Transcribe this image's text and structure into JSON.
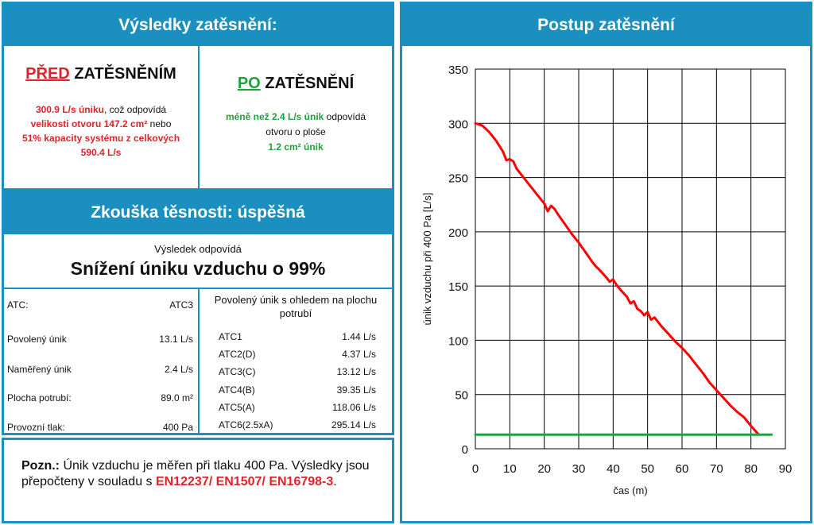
{
  "results": {
    "title": "Výsledky zatěsnění:",
    "before": {
      "heading_key": "PŘED",
      "heading_rest": "ZATĚSNĚNÍM",
      "line1_red": "300.9 L/s úniku",
      "line1_rest": ", což odpovídá",
      "line2_red": "velikosti otvoru 147.2 cm²",
      "line2_rest": " nebo",
      "line3_red": "51% kapacity systému z celkových",
      "line4_red": "590.4 L/s"
    },
    "after": {
      "heading_key": "PO",
      "heading_rest": "ZATĚSNĚNÍ",
      "line1_green": "méně než 2.4 L/s únik",
      "line1_rest": " odpovídá",
      "line2": "otvoru o ploše",
      "line3_green": "1.2 cm² únik"
    }
  },
  "test": {
    "title": "Zkouška těsnosti: úspěšná",
    "result_intro": "Výsledek odpovídá",
    "result_main": "Snížení úniku vzduchu o 99%",
    "left_rows": [
      {
        "label": "ATC:",
        "value": "ATC3"
      },
      {
        "label": "Povolený únik",
        "value": "13.1 L/s"
      },
      {
        "label": "Naměřený únik",
        "value": "2.4 L/s"
      },
      {
        "label": "Plocha potrubí:",
        "value": "89.0 m²"
      },
      {
        "label": "Provozní tlak:",
        "value": "400 Pa"
      }
    ],
    "right_title": "Povolený únik s ohledem na plochu potrubí",
    "right_rows": [
      {
        "label": "ATC1",
        "value": "1.44 L/s"
      },
      {
        "label": "ATC2(D)",
        "value": "4.37 L/s"
      },
      {
        "label": "ATC3(C)",
        "value": "13.12 L/s"
      },
      {
        "label": "ATC4(B)",
        "value": "39.35 L/s"
      },
      {
        "label": "ATC5(A)",
        "value": "118.06 L/s"
      },
      {
        "label": "ATC6(2.5xA)",
        "value": "295.14 L/s"
      }
    ]
  },
  "note": {
    "label": "Pozn.:",
    "text": " Únik vzduchu je měřen při tlaku 400 Pa. Výsledky jsou přepočteny v souladu s ",
    "standards": "EN12237/ EN1507/ EN16798-3",
    "end": "."
  },
  "colors": {
    "accent": "#1b8fc0",
    "red": "#e0222b",
    "green": "#1ea23a"
  },
  "chart_data": {
    "type": "line",
    "title": "Postup zatěsnění",
    "xlabel": "čas (m)",
    "ylabel": "únik vzduchu při 400 Pa [L/s]",
    "xlim": [
      0,
      90
    ],
    "ylim": [
      0,
      350
    ],
    "xticks": [
      0,
      10,
      20,
      30,
      40,
      50,
      60,
      70,
      80,
      90
    ],
    "yticks": [
      0,
      50,
      100,
      150,
      200,
      250,
      300,
      350
    ],
    "grid": true,
    "series": [
      {
        "color": "#ff0000",
        "x": [
          0,
          2,
          4,
          6,
          8,
          9,
          10,
          11,
          12,
          14,
          16,
          18,
          20,
          21,
          22,
          23,
          24,
          26,
          28,
          30,
          32,
          34,
          35,
          36,
          38,
          39,
          40,
          41,
          42,
          44,
          45,
          46,
          47,
          48,
          49,
          50,
          51,
          52,
          54,
          56,
          58,
          60,
          62,
          64,
          66,
          68,
          70,
          72,
          74,
          76,
          78,
          80,
          82
        ],
        "values": [
          300,
          298,
          292,
          284,
          274,
          266,
          267,
          265,
          258,
          250,
          242,
          234,
          226,
          219,
          224,
          221,
          216,
          207,
          198,
          190,
          181,
          172,
          168,
          165,
          158,
          154,
          156,
          151,
          147,
          140,
          134,
          136,
          129,
          127,
          123,
          126,
          119,
          121,
          113,
          106,
          99,
          93,
          86,
          78,
          70,
          61,
          54,
          47,
          40,
          34,
          29,
          21,
          14
        ]
      },
      {
        "color": "#1ea23a",
        "x": [
          0,
          86
        ],
        "values": [
          13,
          13
        ]
      }
    ]
  }
}
